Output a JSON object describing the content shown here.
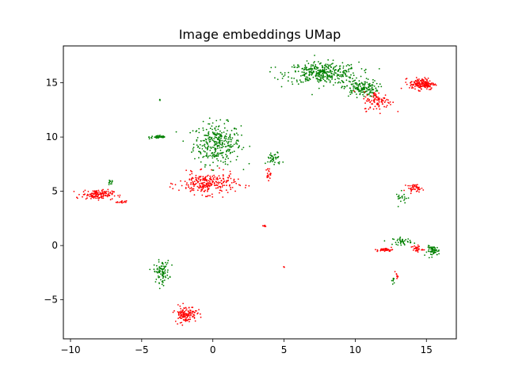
{
  "chart_data": {
    "type": "scatter",
    "title": "Image embeddings UMap",
    "xlabel": "",
    "ylabel": "",
    "xlim": [
      -10.5,
      17.1
    ],
    "ylim": [
      -8.6,
      18.4
    ],
    "x_ticks": [
      -10,
      -5,
      0,
      5,
      10,
      15
    ],
    "y_ticks": [
      -5,
      0,
      5,
      10,
      15
    ],
    "x_tick_labels": [
      "−10",
      "−5",
      "0",
      "5",
      "10",
      "15"
    ],
    "y_tick_labels": [
      "−5",
      "0",
      "5",
      "10",
      "15"
    ],
    "grid": false,
    "colors": {
      "a": "#008000",
      "b": "#ff0000"
    },
    "series": [
      {
        "color": "#008000",
        "clusters": [
          {
            "cx": 0.3,
            "cy": 9.4,
            "rx": 1.5,
            "ry": 1.7,
            "n": 320
          },
          {
            "cx": -3.8,
            "cy": 10.0,
            "rx": 0.6,
            "ry": 0.15,
            "n": 40
          },
          {
            "cx": 7.7,
            "cy": 15.9,
            "rx": 2.3,
            "ry": 0.9,
            "n": 360
          },
          {
            "cx": 10.4,
            "cy": 14.5,
            "rx": 1.1,
            "ry": 0.7,
            "n": 160
          },
          {
            "cx": 4.3,
            "cy": 8.0,
            "rx": 0.5,
            "ry": 0.6,
            "n": 40
          },
          {
            "cx": -3.6,
            "cy": -2.4,
            "rx": 0.5,
            "ry": 0.9,
            "n": 90
          },
          {
            "cx": 15.5,
            "cy": -0.5,
            "rx": 0.4,
            "ry": 0.4,
            "n": 60
          },
          {
            "cx": 13.3,
            "cy": 0.4,
            "rx": 0.6,
            "ry": 0.3,
            "n": 40
          },
          {
            "cx": -7.2,
            "cy": 5.8,
            "rx": 0.2,
            "ry": 0.2,
            "n": 12
          },
          {
            "cx": 13.3,
            "cy": 4.4,
            "rx": 0.4,
            "ry": 0.5,
            "n": 20
          },
          {
            "cx": 12.7,
            "cy": -3.2,
            "rx": 0.1,
            "ry": 0.3,
            "n": 10
          },
          {
            "cx": -3.7,
            "cy": 13.4,
            "rx": 0.08,
            "ry": 0.08,
            "n": 3
          }
        ]
      },
      {
        "color": "#ff0000",
        "clusters": [
          {
            "cx": -0.4,
            "cy": 5.7,
            "rx": 1.8,
            "ry": 0.9,
            "n": 260
          },
          {
            "cx": -8.1,
            "cy": 4.7,
            "rx": 1.0,
            "ry": 0.4,
            "n": 140
          },
          {
            "cx": -6.4,
            "cy": 4.0,
            "rx": 0.3,
            "ry": 0.1,
            "n": 15
          },
          {
            "cx": 14.7,
            "cy": 14.9,
            "rx": 0.8,
            "ry": 0.5,
            "n": 170
          },
          {
            "cx": 11.6,
            "cy": 13.3,
            "rx": 0.9,
            "ry": 0.8,
            "n": 100
          },
          {
            "cx": -1.9,
            "cy": -6.3,
            "rx": 0.7,
            "ry": 0.7,
            "n": 130
          },
          {
            "cx": 14.2,
            "cy": 5.3,
            "rx": 0.5,
            "ry": 0.3,
            "n": 40
          },
          {
            "cx": 12.1,
            "cy": -0.4,
            "rx": 0.5,
            "ry": 0.15,
            "n": 40
          },
          {
            "cx": 14.3,
            "cy": -0.3,
            "rx": 0.4,
            "ry": 0.3,
            "n": 30
          },
          {
            "cx": 3.9,
            "cy": 6.6,
            "rx": 0.15,
            "ry": 0.5,
            "n": 20
          },
          {
            "cx": 3.6,
            "cy": 1.8,
            "rx": 0.1,
            "ry": 0.1,
            "n": 6
          },
          {
            "cx": 5.0,
            "cy": -2.0,
            "rx": 0.05,
            "ry": 0.05,
            "n": 3
          },
          {
            "cx": 12.9,
            "cy": -2.8,
            "rx": 0.1,
            "ry": 0.2,
            "n": 8
          }
        ]
      }
    ]
  }
}
